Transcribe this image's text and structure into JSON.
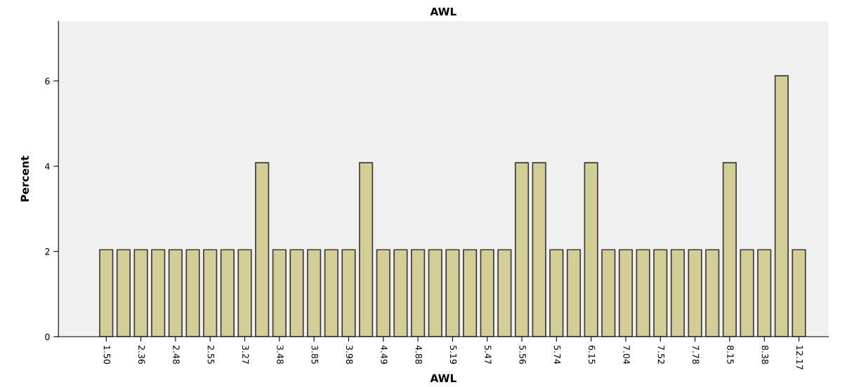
{
  "chart_data": {
    "type": "bar",
    "title": "AWL",
    "xlabel": "AWL",
    "ylabel": "Percent",
    "categories": [
      "1.50",
      null,
      "2.36",
      null,
      "2.48",
      null,
      "2.55",
      null,
      "3.27",
      null,
      "3.48",
      null,
      "3.85",
      null,
      "3.98",
      null,
      "4.49",
      null,
      "4.88",
      null,
      "5.19",
      null,
      "5.47",
      null,
      "5.56",
      null,
      "5.74",
      null,
      "6.15",
      null,
      "7.04",
      null,
      "7.52",
      null,
      "7.78",
      null,
      "8.15",
      null,
      "8.38",
      null,
      "12.17"
    ],
    "values": [
      2.04,
      2.04,
      2.04,
      2.04,
      2.04,
      2.04,
      2.04,
      2.04,
      2.04,
      4.08,
      2.04,
      2.04,
      2.04,
      2.04,
      2.04,
      4.08,
      2.04,
      2.04,
      2.04,
      2.04,
      2.04,
      2.04,
      2.04,
      2.04,
      4.08,
      4.08,
      2.04,
      2.04,
      4.08,
      2.04,
      2.04,
      2.04,
      2.04,
      2.04,
      2.04,
      2.04,
      4.08,
      2.04,
      2.04,
      6.12,
      2.04
    ],
    "color": "#d3cd96",
    "ylim": [
      0,
      7.4
    ],
    "yticks": [
      0,
      2,
      4,
      6
    ],
    "grid": false
  }
}
